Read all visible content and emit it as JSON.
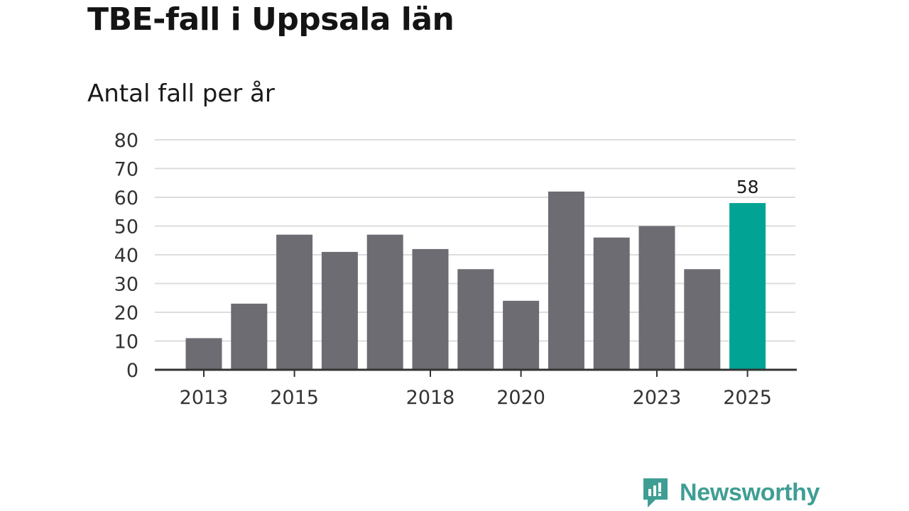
{
  "title": "TBE-fall i Uppsala län",
  "subtitle": "Antal fall per år",
  "brand": {
    "name": "Newsworthy",
    "icon": "newsworthy-logo-icon",
    "color": "#3f9e94"
  },
  "colors": {
    "bar": "#6d6c73",
    "highlight": "#00a394",
    "grid": "#dddddd",
    "axis": "#333333"
  },
  "chart_data": {
    "type": "bar",
    "title": "TBE-fall i Uppsala län",
    "subtitle": "Antal fall per år",
    "xlabel": "",
    "ylabel": "",
    "categories": [
      "2013",
      "2014",
      "2015",
      "2016",
      "2017",
      "2018",
      "2019",
      "2020",
      "2021",
      "2022",
      "2023",
      "2024",
      "2025"
    ],
    "values": [
      11,
      23,
      47,
      41,
      47,
      42,
      35,
      24,
      62,
      46,
      50,
      35,
      58
    ],
    "x_tick_labels": [
      "2013",
      "2015",
      "2018",
      "2020",
      "2023",
      "2025"
    ],
    "y_ticks": [
      0,
      10,
      20,
      30,
      40,
      50,
      60,
      70,
      80
    ],
    "ylim": [
      0,
      80
    ],
    "grid": true,
    "highlight": {
      "category": "2025",
      "label": "58"
    }
  }
}
